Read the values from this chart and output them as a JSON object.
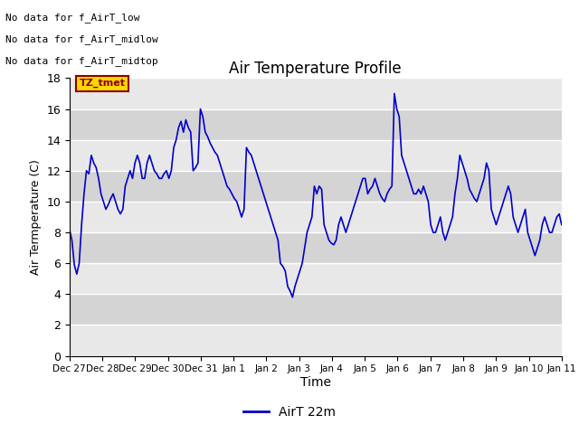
{
  "title": "Air Temperature Profile",
  "xlabel": "Time",
  "ylabel": "Air Termperature (C)",
  "ylim": [
    0,
    18
  ],
  "yticks": [
    0,
    2,
    4,
    6,
    8,
    10,
    12,
    14,
    16,
    18
  ],
  "line_color": "#0000cc",
  "line_width": 1.2,
  "bg_color": "#ffffff",
  "plot_bg_light": "#e8e8e8",
  "plot_bg_dark": "#d0d0d0",
  "legend_label": "AirT 22m",
  "no_data_texts": [
    "No data for f_AirT_low",
    "No data for f_AirT_midlow",
    "No data for f_AirT_midtop"
  ],
  "tz_label": "TZ_tmet",
  "x_tick_labels": [
    "Dec 27",
    "Dec 28",
    "Dec 29",
    "Dec 30",
    "Dec 31",
    "Jan 1",
    "Jan 2",
    "Jan 3",
    "Jan 4",
    "Jan 5",
    "Jan 6",
    "Jan 7",
    "Jan 8",
    "Jan 9",
    "Jan 10",
    "Jan 11"
  ],
  "data_points": [
    8.2,
    7.5,
    5.9,
    5.3,
    6.0,
    8.5,
    10.5,
    12.0,
    11.8,
    13.0,
    12.5,
    12.2,
    11.5,
    10.5,
    10.0,
    9.5,
    9.8,
    10.2,
    10.5,
    10.0,
    9.5,
    9.2,
    9.5,
    11.0,
    11.5,
    12.0,
    11.5,
    12.5,
    13.0,
    12.5,
    11.5,
    11.5,
    12.5,
    13.0,
    12.5,
    12.0,
    11.8,
    11.5,
    11.5,
    11.8,
    12.0,
    11.5,
    12.0,
    13.5,
    14.0,
    14.8,
    15.2,
    14.5,
    15.3,
    14.8,
    14.5,
    12.0,
    12.2,
    12.5,
    16.0,
    15.5,
    14.5,
    14.2,
    13.8,
    13.5,
    13.2,
    13.0,
    12.5,
    12.0,
    11.5,
    11.0,
    10.8,
    10.5,
    10.2,
    10.0,
    9.5,
    9.0,
    9.5,
    13.5,
    13.2,
    13.0,
    12.5,
    12.0,
    11.5,
    11.0,
    10.5,
    10.0,
    9.5,
    9.0,
    8.5,
    8.0,
    7.5,
    6.0,
    5.8,
    5.5,
    4.5,
    4.2,
    3.8,
    4.5,
    5.0,
    5.5,
    6.0,
    7.0,
    8.0,
    8.5,
    9.0,
    11.0,
    10.5,
    11.0,
    10.8,
    8.5,
    8.0,
    7.5,
    7.3,
    7.2,
    7.5,
    8.5,
    9.0,
    8.5,
    8.0,
    8.5,
    9.0,
    9.5,
    10.0,
    10.5,
    11.0,
    11.5,
    11.5,
    10.5,
    10.8,
    11.0,
    11.5,
    11.0,
    10.5,
    10.2,
    10.0,
    10.5,
    10.8,
    11.0,
    17.0,
    16.0,
    15.5,
    13.0,
    12.5,
    12.0,
    11.5,
    11.0,
    10.5,
    10.5,
    10.8,
    10.5,
    11.0,
    10.5,
    10.0,
    8.5,
    8.0,
    8.0,
    8.5,
    9.0,
    8.0,
    7.5,
    8.0,
    8.5,
    9.0,
    10.5,
    11.5,
    13.0,
    12.5,
    12.0,
    11.5,
    10.8,
    10.5,
    10.2,
    10.0,
    10.5,
    11.0,
    11.5,
    12.5,
    12.0,
    9.5,
    9.0,
    8.5,
    9.0,
    9.5,
    10.0,
    10.5,
    11.0,
    10.5,
    9.0,
    8.5,
    8.0,
    8.5,
    9.0,
    9.5,
    8.0,
    7.5,
    7.0,
    6.5,
    7.0,
    7.5,
    8.5,
    9.0,
    8.5,
    8.0,
    8.0,
    8.5,
    9.0,
    9.2,
    8.5
  ]
}
